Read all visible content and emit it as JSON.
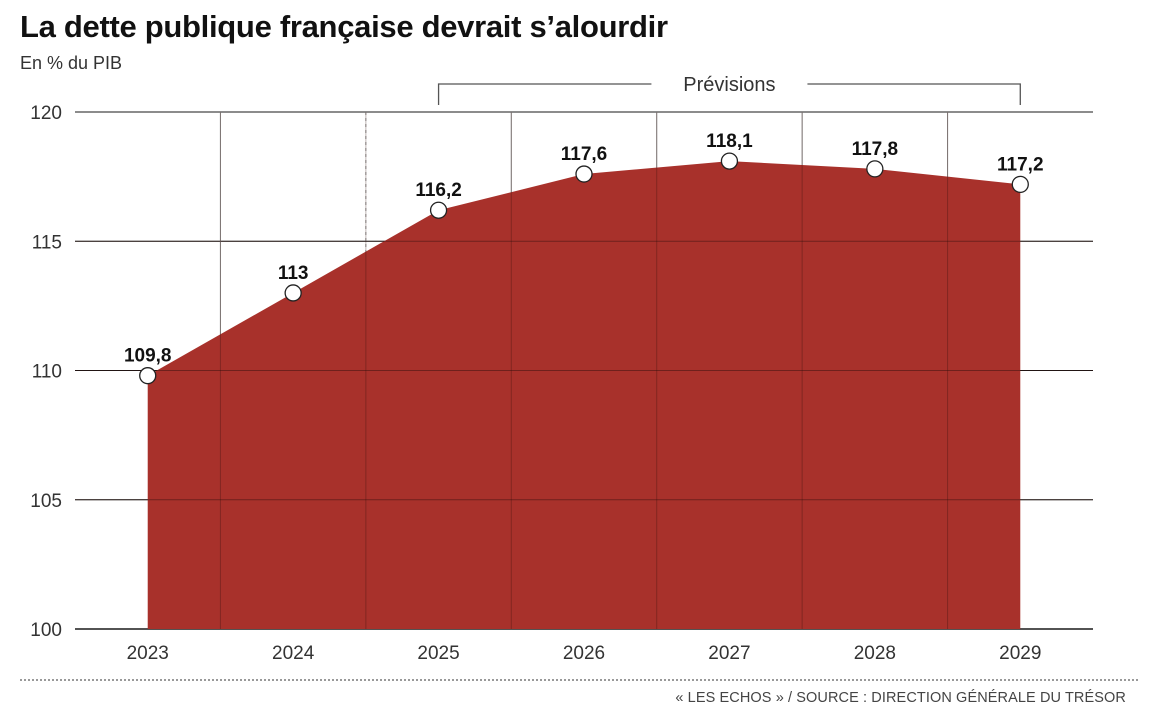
{
  "header": {
    "title": "La dette publique française devrait s’alourdir",
    "subtitle": "En % du PIB"
  },
  "chart_data": {
    "type": "area",
    "title": "La dette publique française devrait s’alourdir",
    "ylabel": "En % du PIB",
    "xlabel": "",
    "categories": [
      "2023",
      "2024",
      "2025",
      "2026",
      "2027",
      "2028",
      "2029"
    ],
    "values": [
      109.8,
      113,
      116.2,
      117.6,
      118.1,
      117.8,
      117.2
    ],
    "data_labels": [
      "109,8",
      "113",
      "116,2",
      "117,6",
      "118,1",
      "117,8",
      "117,2"
    ],
    "ylim": [
      100,
      120
    ],
    "yticks": [
      100,
      105,
      110,
      115,
      120
    ],
    "grid": true,
    "forecast": {
      "label": "Prévisions",
      "from": "2025",
      "to": "2029"
    },
    "colors": {
      "fill": "#a8312b",
      "grid": "#1a1a1a",
      "marker_fill": "#ffffff"
    }
  },
  "footer": {
    "source": "« LES ECHOS » / SOURCE : DIRECTION GÉNÉRALE DU TRÉSOR"
  }
}
